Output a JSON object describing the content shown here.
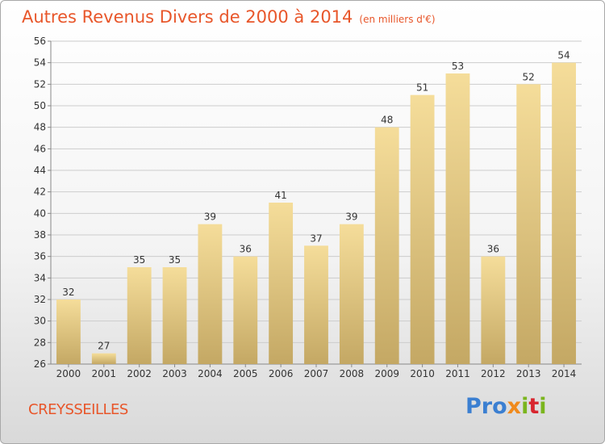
{
  "title": "Autres Revenus Divers de 2000 à 2014",
  "title_unit": "(en milliers d'€)",
  "commune": "CREYSSEILLES",
  "logo": {
    "part1": "Pro",
    "part2": "x",
    "part3": "i",
    "part4": "t",
    "part5": "i"
  },
  "colors": {
    "title": "#e8562a",
    "bar_top": "#f5dd9a",
    "bar_bottom": "#c4a864",
    "grid": "#cccccc"
  },
  "chart_data": {
    "type": "bar",
    "categories": [
      "2000",
      "2001",
      "2002",
      "2003",
      "2004",
      "2005",
      "2006",
      "2007",
      "2008",
      "2009",
      "2010",
      "2011",
      "2012",
      "2013",
      "2014"
    ],
    "values": [
      32,
      27,
      35,
      35,
      39,
      36,
      41,
      37,
      39,
      48,
      51,
      53,
      36,
      52,
      54
    ],
    "ylim": [
      26,
      56
    ],
    "yticks": [
      26,
      28,
      30,
      32,
      34,
      36,
      38,
      40,
      42,
      44,
      46,
      48,
      50,
      52,
      54,
      56
    ],
    "grid": true,
    "legend": "none"
  }
}
